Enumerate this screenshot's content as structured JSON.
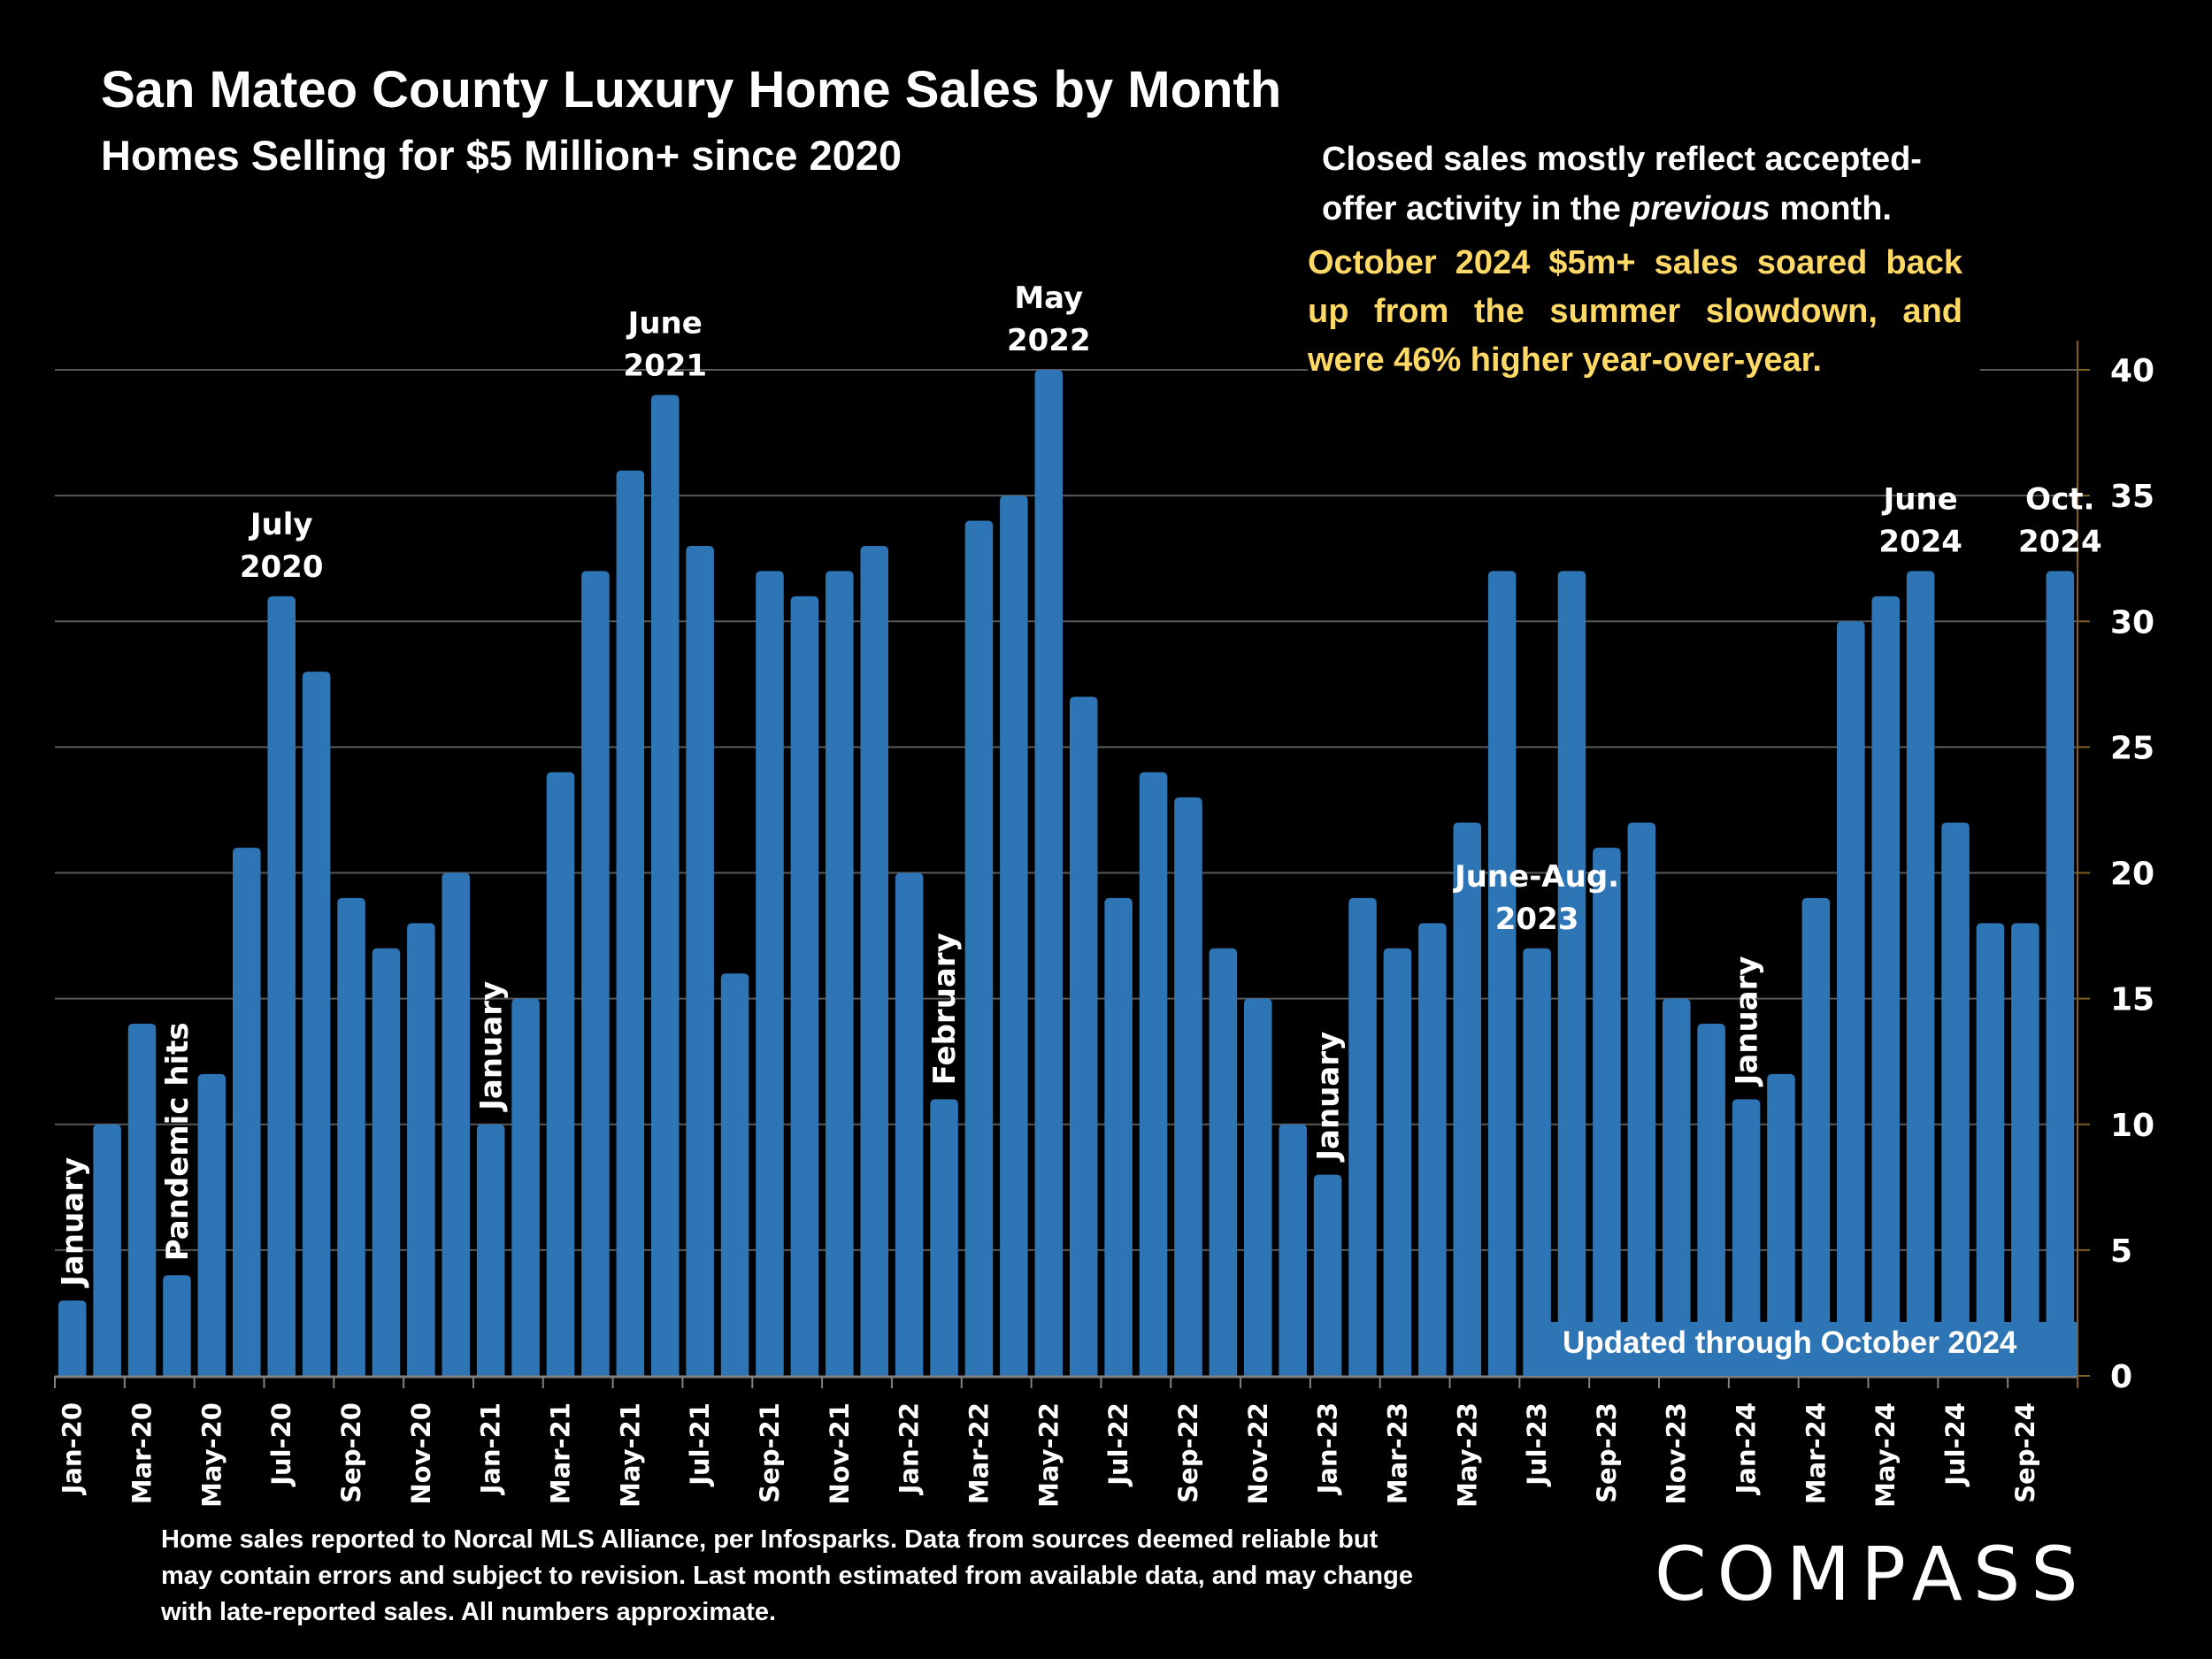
{
  "header": {
    "title": "San Mateo County Luxury Home Sales by Month",
    "subtitle": "Homes Selling for $5 Million+ since 2020"
  },
  "notes": {
    "closed_sales_prefix": "Closed sales mostly reflect accepted-offer activity in the ",
    "closed_sales_italic": "previous",
    "closed_sales_suffix": " month.",
    "highlight": "October 2024 $5m+ sales soared back up from the summer slowdown, and were 46% higher year-over-year.",
    "updated": "Updated through October 2024"
  },
  "footer": {
    "disclaimer": "Home sales reported to Norcal MLS Alliance, per Infosparks. Data from sources deemed reliable but may contain errors and subject to revision.  Last month estimated from available data, and may change with late-reported sales. All numbers approximate."
  },
  "brand": {
    "logo": "COMPASS"
  },
  "colors": {
    "bar": "#2E75B6",
    "highlight_text": "#FFD966",
    "axis": "#7F6020",
    "gridline": "#595959",
    "background": "#000000"
  },
  "chart_data": {
    "type": "bar",
    "title": "San Mateo County Luxury Home Sales by Month",
    "subtitle": "Homes Selling for $5 Million+ since 2020",
    "xlabel": "",
    "ylabel": "",
    "ylim": [
      0,
      40
    ],
    "yticks": [
      0,
      5,
      10,
      15,
      20,
      25,
      30,
      35,
      40
    ],
    "y_axis_position": "right",
    "grid": true,
    "legend": "none",
    "categories": [
      "Jan-20",
      "Feb-20",
      "Mar-20",
      "Apr-20",
      "May-20",
      "Jun-20",
      "Jul-20",
      "Aug-20",
      "Sep-20",
      "Oct-20",
      "Nov-20",
      "Dec-20",
      "Jan-21",
      "Feb-21",
      "Mar-21",
      "Apr-21",
      "May-21",
      "Jun-21",
      "Jul-21",
      "Aug-21",
      "Sep-21",
      "Oct-21",
      "Nov-21",
      "Dec-21",
      "Jan-22",
      "Feb-22",
      "Mar-22",
      "Apr-22",
      "May-22",
      "Jun-22",
      "Jul-22",
      "Aug-22",
      "Sep-22",
      "Oct-22",
      "Nov-22",
      "Dec-22",
      "Jan-23",
      "Feb-23",
      "Mar-23",
      "Apr-23",
      "May-23",
      "Jun-23",
      "Jul-23",
      "Aug-23",
      "Sep-23",
      "Oct-23",
      "Nov-23",
      "Dec-23",
      "Jan-24",
      "Feb-24",
      "Mar-24",
      "Apr-24",
      "May-24",
      "Jun-24",
      "Jul-24",
      "Aug-24",
      "Sep-24",
      "Oct-24"
    ],
    "x_tick_labels": [
      "Jan-20",
      "Mar-20",
      "May-20",
      "Jul-20",
      "Sep-20",
      "Nov-20",
      "Jan-21",
      "Mar-21",
      "May-21",
      "Jul-21",
      "Sep-21",
      "Nov-21",
      "Jan-22",
      "Mar-22",
      "May-22",
      "Jul-22",
      "Sep-22",
      "Nov-22",
      "Jan-23",
      "Mar-23",
      "May-23",
      "Jul-23",
      "Sep-23",
      "Nov-23",
      "Jan-24",
      "Mar-24",
      "May-24",
      "Jul-24",
      "Sep-24"
    ],
    "values": [
      3,
      10,
      14,
      4,
      12,
      21,
      31,
      28,
      19,
      17,
      18,
      20,
      10,
      15,
      24,
      32,
      36,
      39,
      33,
      16,
      32,
      31,
      32,
      33,
      20,
      11,
      34,
      35,
      40,
      27,
      19,
      24,
      23,
      17,
      15,
      10,
      8,
      19,
      17,
      18,
      22,
      32,
      17,
      32,
      21,
      22,
      15,
      14,
      11,
      12,
      19,
      30,
      31,
      32,
      22,
      18,
      18,
      32
    ],
    "annotations": [
      {
        "index": 0,
        "text": "January",
        "style": "vertical"
      },
      {
        "index": 3,
        "text": "Pandemic hits",
        "style": "vertical"
      },
      {
        "index": 6,
        "text": "July|2020",
        "style": "horizontal"
      },
      {
        "index": 12,
        "text": "January",
        "style": "vertical"
      },
      {
        "index": 17,
        "text": "June|2021",
        "style": "horizontal"
      },
      {
        "index": 25,
        "text": "February",
        "style": "vertical"
      },
      {
        "index": 28,
        "text": "May|2022",
        "style": "horizontal"
      },
      {
        "index": 36,
        "text": "January",
        "style": "vertical"
      },
      {
        "index": 42,
        "text": "June-Aug.|2023",
        "style": "horizontal"
      },
      {
        "index": 48,
        "text": "January",
        "style": "vertical"
      },
      {
        "index": 53,
        "text": "June|2024",
        "style": "horizontal"
      },
      {
        "index": 57,
        "text": "Oct.|2024",
        "style": "horizontal"
      }
    ]
  }
}
